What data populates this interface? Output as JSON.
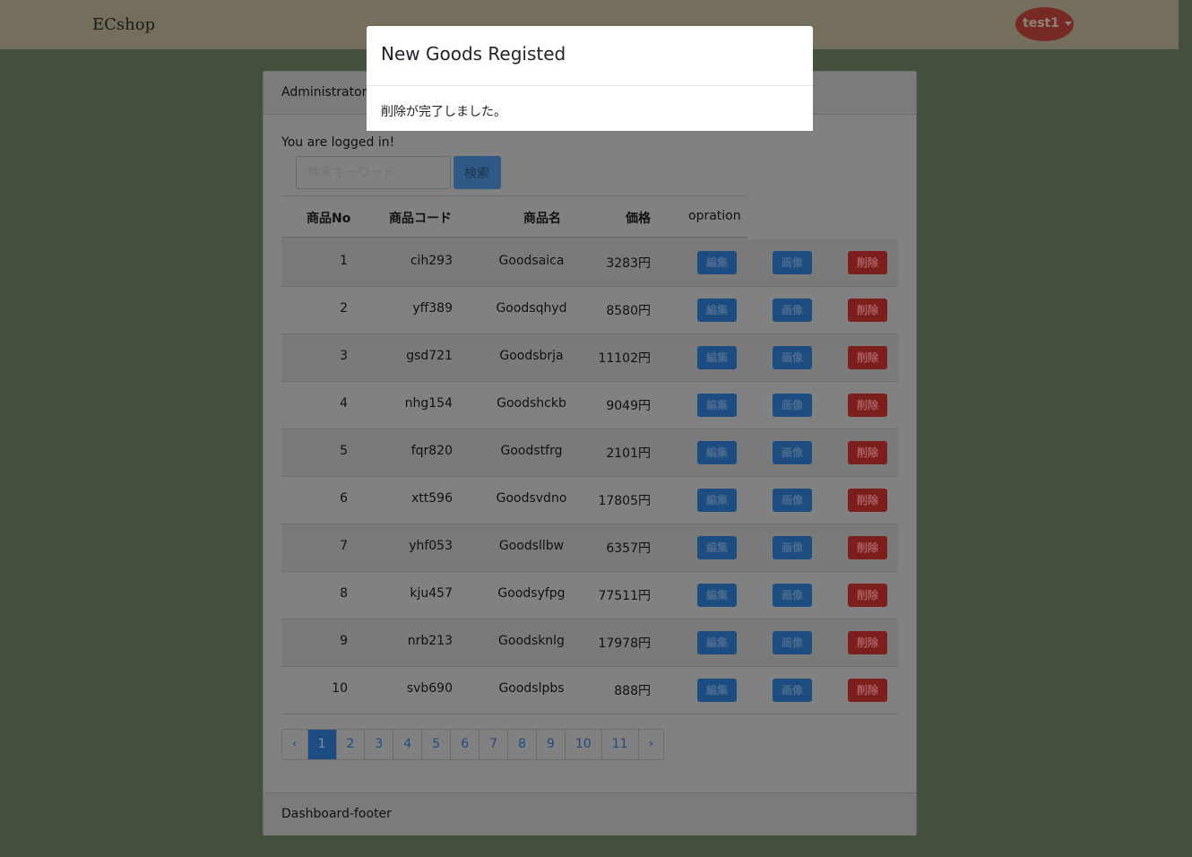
{
  "navbar": {
    "brand": "ECshop",
    "user": "test1"
  },
  "card": {
    "header": "Administrator Dashboard",
    "logged_in": "You are logged in!",
    "footer": "Dashboard-footer"
  },
  "search": {
    "placeholder": "検索キーワード",
    "button": "検索"
  },
  "table": {
    "headers": [
      "商品No",
      "商品コード",
      "商品名",
      "価格",
      "opration"
    ],
    "rows": [
      {
        "no": "1",
        "code": "cih293",
        "name": "Goodsaica",
        "price": "3283円"
      },
      {
        "no": "2",
        "code": "yff389",
        "name": "Goodsqhyd",
        "price": "8580円"
      },
      {
        "no": "3",
        "code": "gsd721",
        "name": "Goodsbrja",
        "price": "11102円"
      },
      {
        "no": "4",
        "code": "nhg154",
        "name": "Goodshckb",
        "price": "9049円"
      },
      {
        "no": "5",
        "code": "fqr820",
        "name": "Goodstfrg",
        "price": "2101円"
      },
      {
        "no": "6",
        "code": "xtt596",
        "name": "Goodsvdno",
        "price": "17805円"
      },
      {
        "no": "7",
        "code": "yhf053",
        "name": "Goodsllbw",
        "price": "6357円"
      },
      {
        "no": "8",
        "code": "kju457",
        "name": "Goodsyfpg",
        "price": "77511円"
      },
      {
        "no": "9",
        "code": "nrb213",
        "name": "Goodsknlg",
        "price": "17978円"
      },
      {
        "no": "10",
        "code": "svb690",
        "name": "Goodslpbs",
        "price": "888円"
      }
    ],
    "actions": {
      "edit": "編集",
      "image": "画像",
      "delete": "削除"
    }
  },
  "pagination": {
    "prev": "‹",
    "next": "›",
    "pages": [
      "1",
      "2",
      "3",
      "4",
      "5",
      "6",
      "7",
      "8",
      "9",
      "10",
      "11"
    ],
    "current": "1"
  },
  "modal": {
    "title": "New Goods Registed",
    "body": "削除が完了しました。"
  },
  "colors": {
    "navbar": "#746f5c",
    "background": "#444f3e",
    "primary": "#1d4d80",
    "danger": "#7c1e1c"
  }
}
